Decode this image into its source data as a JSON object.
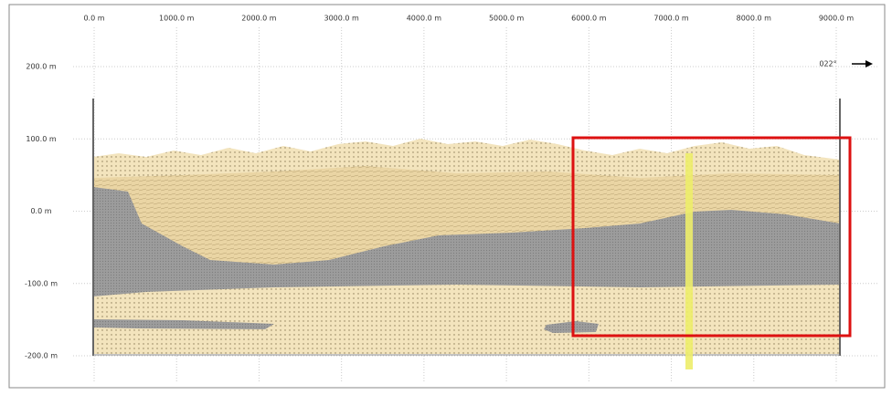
{
  "x_axis": {
    "labels": [
      "0.0 m",
      "1000.0 m",
      "2000.0 m",
      "3000.0 m",
      "4000.0 m",
      "5000.0 m",
      "6000.0 m",
      "7000.0 m",
      "8000.0 m",
      "9000.0 m"
    ]
  },
  "y_axis": {
    "labels": [
      "200.0 m",
      "100.0 m",
      "0.0 m",
      "-100.0 m",
      "-200.0 m"
    ]
  },
  "orientation": {
    "label": "022°"
  }
}
